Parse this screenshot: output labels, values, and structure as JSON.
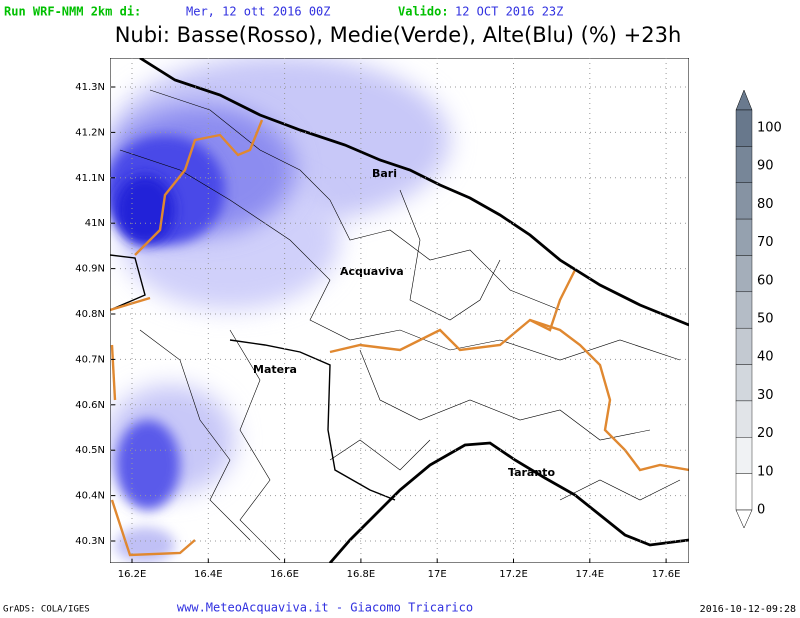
{
  "header": {
    "run_label": "Run WRF-NMM 2km di:",
    "run_date": "Mer, 12 ott 2016 00Z",
    "valid_label": "Valido:",
    "valid_date": "12 OCT 2016 23Z",
    "title": "Nubi: Basse(Rosso), Medie(Verde), Alte(Blu) (%) +23h"
  },
  "map": {
    "lon_labels": [
      "16.2E",
      "16.4E",
      "16.6E",
      "16.8E",
      "17E",
      "17.2E",
      "17.4E",
      "17.6E"
    ],
    "lat_labels": [
      "41.3N",
      "41.2N",
      "41.1N",
      "41N",
      "40.9N",
      "40.8N",
      "40.7N",
      "40.6N",
      "40.5N",
      "40.4N",
      "40.3N"
    ],
    "places": [
      "Bari",
      "Acquaviva",
      "Matera",
      "Taranto"
    ]
  },
  "colorbar": {
    "labels": [
      100,
      90,
      80,
      70,
      60,
      50,
      40,
      30,
      20,
      10,
      0
    ]
  },
  "footer": {
    "left": "GrADS: COLA/IGES",
    "center": "www.MeteoAcquaviva.it - Giacomo Tricarico",
    "right": "2016-10-12-09:28"
  }
}
